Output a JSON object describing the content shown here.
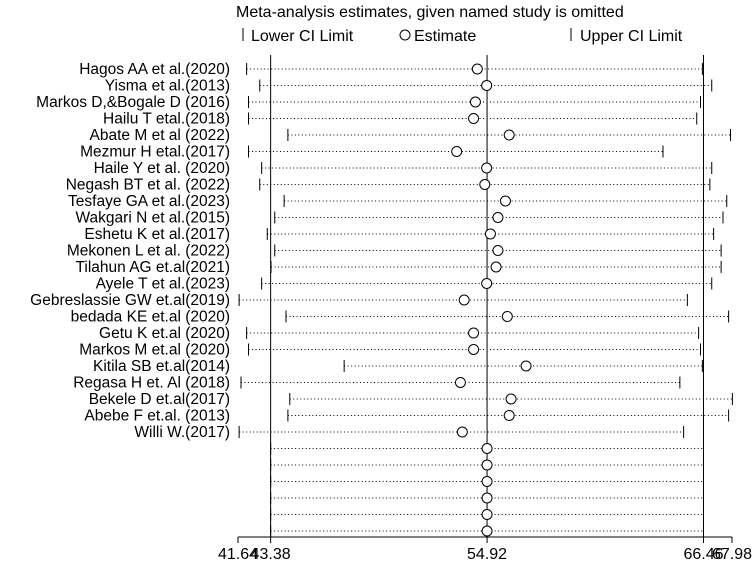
{
  "chart_data": {
    "type": "forest-influence",
    "title": "Meta-analysis estimates, given named study is omitted",
    "legend": {
      "lower": "Lower CI Limit",
      "estimate": "Estimate",
      "upper": "Upper CI Limit",
      "placement": "top"
    },
    "x_ticks": [
      41.64,
      43.38,
      54.92,
      66.46,
      67.98
    ],
    "x_tick_labels": [
      "41.64",
      "43.38",
      "54.92",
      "66.46",
      "67.98"
    ],
    "xlim": [
      41.64,
      67.98
    ],
    "reference_lines": [
      43.38,
      54.92,
      66.46
    ],
    "studies": [
      {
        "name": "Hagos AA et al.(2020)",
        "lower": 42.1,
        "estimate": 54.4,
        "upper": 66.4
      },
      {
        "name": "Yisma et al.(2013)",
        "lower": 42.8,
        "estimate": 54.9,
        "upper": 66.9
      },
      {
        "name": "Markos D,&Bogale D (2016)",
        "lower": 42.2,
        "estimate": 54.3,
        "upper": 66.3
      },
      {
        "name": "Hailu T etal.(2018)",
        "lower": 42.2,
        "estimate": 54.2,
        "upper": 66.1
      },
      {
        "name": "Abate M et al (2022)",
        "lower": 44.3,
        "estimate": 56.1,
        "upper": 67.9
      },
      {
        "name": "Mezmur H etal.(2017)",
        "lower": 42.2,
        "estimate": 53.3,
        "upper": 64.3
      },
      {
        "name": "Haile Y et al. (2020)",
        "lower": 42.9,
        "estimate": 54.9,
        "upper": 66.9
      },
      {
        "name": "Negash BT et al. (2022)",
        "lower": 42.8,
        "estimate": 54.8,
        "upper": 66.8
      },
      {
        "name": "Tesfaye GA et al.(2023)",
        "lower": 44.1,
        "estimate": 55.9,
        "upper": 67.7
      },
      {
        "name": "Wakgari N et al.(2015)",
        "lower": 43.6,
        "estimate": 55.5,
        "upper": 67.5
      },
      {
        "name": "Eshetu K et al.(2017)",
        "lower": 43.2,
        "estimate": 55.1,
        "upper": 67.0
      },
      {
        "name": "Mekonen L et al. (2022)",
        "lower": 43.6,
        "estimate": 55.5,
        "upper": 67.4
      },
      {
        "name": "Tilahun AG et.al(2021)",
        "lower": 43.4,
        "estimate": 55.4,
        "upper": 67.4
      },
      {
        "name": "Ayele T et al.(2023)",
        "lower": 42.9,
        "estimate": 54.9,
        "upper": 66.9
      },
      {
        "name": "Gebreslassie GW et.al(2019)",
        "lower": 41.7,
        "estimate": 53.7,
        "upper": 65.6
      },
      {
        "name": "bedada KE et.al (2020)",
        "lower": 44.2,
        "estimate": 56.0,
        "upper": 67.8
      },
      {
        "name": "Getu K et.al (2020)",
        "lower": 42.1,
        "estimate": 54.2,
        "upper": 66.2
      },
      {
        "name": "Markos M et.al (2020)",
        "lower": 42.2,
        "estimate": 54.2,
        "upper": 66.3
      },
      {
        "name": "Kitila SB et.al(2014)",
        "lower": 47.3,
        "estimate": 57.0,
        "upper": 66.4
      },
      {
        "name": "Regasa H et. Al (2018)",
        "lower": 41.8,
        "estimate": 53.5,
        "upper": 65.2
      },
      {
        "name": "Bekele D et.al(2017)",
        "lower": 44.4,
        "estimate": 56.2,
        "upper": 68.0
      },
      {
        "name": "Abebe F et.al. (2013)",
        "lower": 44.3,
        "estimate": 56.1,
        "upper": 67.8
      },
      {
        "name": "Willi W.(2017)",
        "lower": 41.7,
        "estimate": 53.6,
        "upper": 65.4
      },
      {
        "name": "",
        "lower": 43.38,
        "estimate": 54.92,
        "upper": 66.46
      },
      {
        "name": "",
        "lower": 43.38,
        "estimate": 54.92,
        "upper": 66.46
      },
      {
        "name": "",
        "lower": 43.38,
        "estimate": 54.92,
        "upper": 66.46
      },
      {
        "name": "",
        "lower": 43.38,
        "estimate": 54.92,
        "upper": 66.46
      },
      {
        "name": "",
        "lower": 43.38,
        "estimate": 54.92,
        "upper": 66.46
      },
      {
        "name": "",
        "lower": 43.38,
        "estimate": 54.92,
        "upper": 66.46
      }
    ]
  }
}
